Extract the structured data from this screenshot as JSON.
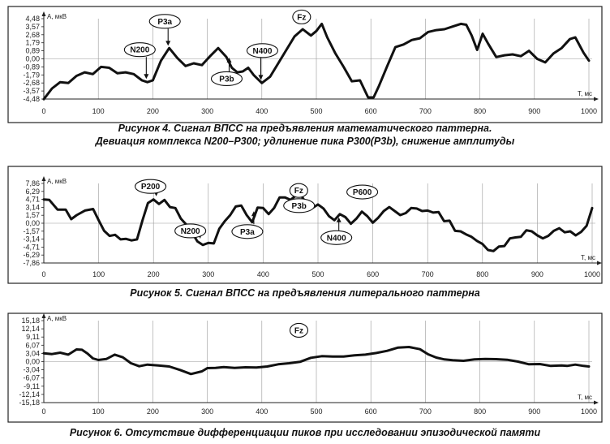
{
  "charts": [
    {
      "caption_line1": "Рисунок 4. Сигнал ВПСС на предъявления математического паттерна.",
      "caption_line2": "Девиация комплекса N200–P300; удлинение пика P300(P3b), снижение амплитуды"
    },
    {
      "caption_line1": "Рисунок 5. Сигнал ВПСС на предъявления литерального паттерна"
    },
    {
      "caption_line1": "Рисунок 6. Отсутствие дифференциации пиков при исследовании эпизодической памяти"
    }
  ],
  "chart_data": [
    {
      "type": "line",
      "ylabel": "А, мкВ",
      "xlabel": "Т, мс",
      "xlim": [
        0,
        1000
      ],
      "ylim": [
        -4.48,
        4.48
      ],
      "y_ticks": [
        "4,48",
        "3,57",
        "2,68",
        "1,79",
        "0,89",
        "0,00",
        "-0,89",
        "-1,79",
        "-2,68",
        "-3,57",
        "-4,48"
      ],
      "x_ticks": [
        "0",
        "100",
        "200",
        "300",
        "400",
        "500",
        "600",
        "700",
        "800",
        "900",
        "1000"
      ],
      "x": [
        0,
        15,
        30,
        45,
        60,
        75,
        90,
        105,
        120,
        135,
        150,
        165,
        180,
        190,
        200,
        215,
        230,
        245,
        260,
        275,
        290,
        305,
        320,
        335,
        345,
        355,
        365,
        375,
        385,
        400,
        415,
        430,
        445,
        460,
        475,
        490,
        500,
        510,
        520,
        535,
        550,
        565,
        580,
        595,
        605,
        615,
        630,
        645,
        660,
        675,
        690,
        705,
        720,
        735,
        750,
        765,
        775,
        785,
        795,
        805,
        815,
        830,
        845,
        860,
        875,
        890,
        905,
        920,
        935,
        950,
        965,
        975,
        990,
        1000
      ],
      "y": [
        -4.5,
        -3.3,
        -2.6,
        -2.7,
        -1.9,
        -1.5,
        -1.7,
        -0.9,
        -1.0,
        -1.6,
        -1.5,
        -1.7,
        -2.4,
        -2.6,
        -2.4,
        -0.2,
        1.2,
        0.1,
        -0.8,
        -0.5,
        -0.7,
        0.3,
        1.2,
        0.2,
        -1.0,
        -1.5,
        -1.4,
        -1.0,
        -1.8,
        -2.7,
        -2.0,
        -0.5,
        1.0,
        2.5,
        3.3,
        2.6,
        3.1,
        3.9,
        2.4,
        0.6,
        -0.9,
        -2.5,
        -2.4,
        -4.3,
        -4.3,
        -3.0,
        -0.8,
        1.3,
        1.6,
        2.1,
        2.3,
        3.0,
        3.2,
        3.3,
        3.6,
        3.9,
        3.8,
        2.6,
        1.0,
        2.8,
        1.7,
        0.2,
        0.4,
        0.5,
        0.3,
        0.9,
        0.0,
        -0.4,
        0.6,
        1.2,
        2.2,
        2.4,
        0.7,
        -0.2
      ],
      "annotations": [
        {
          "text": "N200",
          "x": 188,
          "y": -2.6,
          "shape": "ellipse"
        },
        {
          "text": "P3a",
          "x": 228,
          "y": 1.1,
          "shape": "ellipse"
        },
        {
          "text": "P3b",
          "x": 340,
          "y": 0.5,
          "shape": "ellipse"
        },
        {
          "text": "N400",
          "x": 398,
          "y": -2.7,
          "shape": "ellipse"
        },
        {
          "text": "Fz",
          "x": 470,
          "y": 4.4,
          "shape": "ellipse"
        }
      ]
    },
    {
      "type": "line",
      "ylabel": "А, мкВ",
      "xlabel": "Т, мс",
      "xlim": [
        0,
        1000
      ],
      "ylim": [
        -7.86,
        7.86
      ],
      "y_ticks": [
        "7,86",
        "6,29",
        "4,71",
        "3,14",
        "1,57",
        "0,00",
        "-1,57",
        "-3,14",
        "-4,71",
        "-6,29",
        "-7,86"
      ],
      "x_ticks": [
        "0",
        "100",
        "200",
        "300",
        "400",
        "500",
        "600",
        "700",
        "800",
        "900",
        "1000"
      ],
      "x": [
        0,
        10,
        25,
        40,
        50,
        60,
        75,
        90,
        100,
        110,
        120,
        130,
        140,
        150,
        160,
        170,
        180,
        190,
        200,
        210,
        220,
        230,
        240,
        250,
        260,
        270,
        280,
        290,
        300,
        310,
        320,
        330,
        340,
        350,
        360,
        370,
        380,
        390,
        400,
        410,
        420,
        430,
        440,
        450,
        460,
        470,
        480,
        490,
        500,
        510,
        520,
        530,
        540,
        550,
        560,
        570,
        580,
        590,
        600,
        610,
        620,
        630,
        640,
        650,
        660,
        670,
        680,
        690,
        700,
        710,
        720,
        730,
        740,
        750,
        760,
        770,
        780,
        790,
        800,
        810,
        820,
        830,
        840,
        850,
        860,
        870,
        880,
        890,
        900,
        910,
        920,
        930,
        940,
        950,
        960,
        970,
        980,
        990,
        1000
      ],
      "y": [
        4.7,
        4.6,
        2.7,
        2.7,
        0.8,
        1.6,
        2.5,
        2.8,
        0.6,
        -1.5,
        -2.5,
        -2.3,
        -3.2,
        -3.1,
        -3.4,
        -3.2,
        0.6,
        4.0,
        4.7,
        3.8,
        4.6,
        3.2,
        3.0,
        0.9,
        -0.3,
        -1.8,
        -3.6,
        -4.3,
        -3.9,
        -4.0,
        -1.1,
        0.4,
        1.6,
        3.3,
        3.5,
        1.6,
        0.2,
        3.1,
        3.0,
        1.8,
        3.0,
        5.1,
        5.1,
        4.6,
        5.5,
        5.4,
        3.6,
        3.0,
        3.7,
        2.9,
        1.4,
        0.6,
        1.8,
        1.2,
        -0.1,
        0.9,
        2.3,
        1.4,
        0.1,
        1.1,
        2.4,
        3.2,
        2.4,
        1.6,
        2.0,
        3.0,
        2.9,
        2.4,
        2.5,
        2.1,
        2.2,
        0.4,
        0.5,
        -1.5,
        -1.6,
        -2.2,
        -2.7,
        -3.5,
        -4.1,
        -5.3,
        -5.5,
        -4.6,
        -4.5,
        -3.0,
        -2.8,
        -2.7,
        -1.4,
        -1.6,
        -2.4,
        -3.0,
        -2.5,
        -1.5,
        -1.0,
        -1.8,
        -1.6,
        -2.4,
        -1.7,
        -0.5,
        3.0
      ],
      "annotations": [
        {
          "text": "P200",
          "x": 205,
          "y": 4.7,
          "shape": "ellipse"
        },
        {
          "text": "N200",
          "x": 285,
          "y": -3.6,
          "shape": "ellipse"
        },
        {
          "text": "P3a",
          "x": 383,
          "y": 3.0,
          "shape": "ellipse"
        },
        {
          "text": "Fz",
          "x": 465,
          "y": 5.5,
          "shape": "ellipse"
        },
        {
          "text": "P3b",
          "x": 470,
          "y": 5.4,
          "shape": "ellipse"
        },
        {
          "text": "N400",
          "x": 538,
          "y": 1.8,
          "shape": "ellipse"
        },
        {
          "text": "P600",
          "x": 600,
          "y": 2.0,
          "shape": "ellipse"
        }
      ]
    },
    {
      "type": "line",
      "ylabel": "А, мкВ",
      "xlabel": "Т, мс",
      "xlim": [
        0,
        1000
      ],
      "ylim": [
        -15.18,
        15.18
      ],
      "y_ticks": [
        "15,18",
        "12,14",
        "9,11",
        "6,07",
        "3,04",
        "0,00",
        "-3,04",
        "-6,07",
        "-9,11",
        "-12,14",
        "-15,18"
      ],
      "x_ticks": [
        "0",
        "100",
        "200",
        "300",
        "400",
        "500",
        "600",
        "700",
        "800",
        "900",
        "1000"
      ],
      "x": [
        0,
        15,
        30,
        45,
        60,
        70,
        80,
        90,
        100,
        115,
        130,
        145,
        160,
        175,
        190,
        210,
        230,
        250,
        270,
        290,
        300,
        315,
        330,
        350,
        370,
        390,
        410,
        430,
        450,
        470,
        490,
        510,
        530,
        550,
        570,
        590,
        610,
        630,
        650,
        670,
        690,
        705,
        720,
        735,
        750,
        770,
        790,
        810,
        830,
        850,
        870,
        890,
        910,
        930,
        950,
        960,
        975,
        990,
        1000
      ],
      "y": [
        3.1,
        2.8,
        3.3,
        2.6,
        4.5,
        4.4,
        3.0,
        1.2,
        0.6,
        1.0,
        2.6,
        1.6,
        -0.6,
        -1.7,
        -1.1,
        -1.4,
        -1.8,
        -3.1,
        -4.6,
        -3.6,
        -2.4,
        -2.3,
        -2.0,
        -2.3,
        -2.1,
        -2.2,
        -1.8,
        -1.0,
        -0.6,
        -0.1,
        1.4,
        2.0,
        1.9,
        1.9,
        2.3,
        2.6,
        3.2,
        4.0,
        5.2,
        5.4,
        4.6,
        2.7,
        1.5,
        0.8,
        0.5,
        0.3,
        0.8,
        1.0,
        0.9,
        0.7,
        0.0,
        -1.0,
        -0.9,
        -1.6,
        -1.4,
        -1.6,
        -1.1,
        -1.6,
        -1.8
      ],
      "annotations": [
        {
          "text": "Fz",
          "x": 465,
          "y": 11.0,
          "shape": "ellipse"
        }
      ]
    }
  ]
}
